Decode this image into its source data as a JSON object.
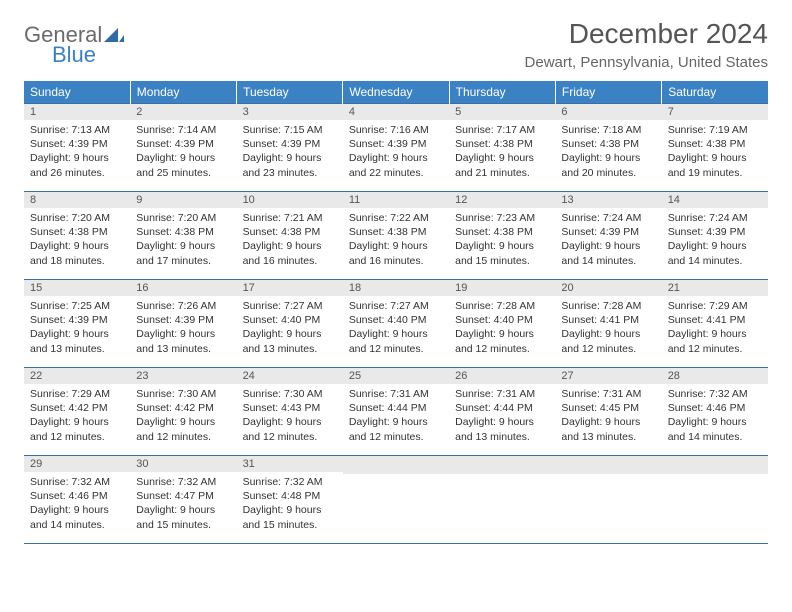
{
  "logo": {
    "general": "General",
    "blue": "Blue"
  },
  "title": "December 2024",
  "location": "Dewart, Pennsylvania, United States",
  "header_bg": "#3b82c4",
  "weekdays": [
    "Sunday",
    "Monday",
    "Tuesday",
    "Wednesday",
    "Thursday",
    "Friday",
    "Saturday"
  ],
  "weeks": [
    [
      {
        "n": "1",
        "sr": "Sunrise: 7:13 AM",
        "ss": "Sunset: 4:39 PM",
        "d1": "Daylight: 9 hours",
        "d2": "and 26 minutes."
      },
      {
        "n": "2",
        "sr": "Sunrise: 7:14 AM",
        "ss": "Sunset: 4:39 PM",
        "d1": "Daylight: 9 hours",
        "d2": "and 25 minutes."
      },
      {
        "n": "3",
        "sr": "Sunrise: 7:15 AM",
        "ss": "Sunset: 4:39 PM",
        "d1": "Daylight: 9 hours",
        "d2": "and 23 minutes."
      },
      {
        "n": "4",
        "sr": "Sunrise: 7:16 AM",
        "ss": "Sunset: 4:39 PM",
        "d1": "Daylight: 9 hours",
        "d2": "and 22 minutes."
      },
      {
        "n": "5",
        "sr": "Sunrise: 7:17 AM",
        "ss": "Sunset: 4:38 PM",
        "d1": "Daylight: 9 hours",
        "d2": "and 21 minutes."
      },
      {
        "n": "6",
        "sr": "Sunrise: 7:18 AM",
        "ss": "Sunset: 4:38 PM",
        "d1": "Daylight: 9 hours",
        "d2": "and 20 minutes."
      },
      {
        "n": "7",
        "sr": "Sunrise: 7:19 AM",
        "ss": "Sunset: 4:38 PM",
        "d1": "Daylight: 9 hours",
        "d2": "and 19 minutes."
      }
    ],
    [
      {
        "n": "8",
        "sr": "Sunrise: 7:20 AM",
        "ss": "Sunset: 4:38 PM",
        "d1": "Daylight: 9 hours",
        "d2": "and 18 minutes."
      },
      {
        "n": "9",
        "sr": "Sunrise: 7:20 AM",
        "ss": "Sunset: 4:38 PM",
        "d1": "Daylight: 9 hours",
        "d2": "and 17 minutes."
      },
      {
        "n": "10",
        "sr": "Sunrise: 7:21 AM",
        "ss": "Sunset: 4:38 PM",
        "d1": "Daylight: 9 hours",
        "d2": "and 16 minutes."
      },
      {
        "n": "11",
        "sr": "Sunrise: 7:22 AM",
        "ss": "Sunset: 4:38 PM",
        "d1": "Daylight: 9 hours",
        "d2": "and 16 minutes."
      },
      {
        "n": "12",
        "sr": "Sunrise: 7:23 AM",
        "ss": "Sunset: 4:38 PM",
        "d1": "Daylight: 9 hours",
        "d2": "and 15 minutes."
      },
      {
        "n": "13",
        "sr": "Sunrise: 7:24 AM",
        "ss": "Sunset: 4:39 PM",
        "d1": "Daylight: 9 hours",
        "d2": "and 14 minutes."
      },
      {
        "n": "14",
        "sr": "Sunrise: 7:24 AM",
        "ss": "Sunset: 4:39 PM",
        "d1": "Daylight: 9 hours",
        "d2": "and 14 minutes."
      }
    ],
    [
      {
        "n": "15",
        "sr": "Sunrise: 7:25 AM",
        "ss": "Sunset: 4:39 PM",
        "d1": "Daylight: 9 hours",
        "d2": "and 13 minutes."
      },
      {
        "n": "16",
        "sr": "Sunrise: 7:26 AM",
        "ss": "Sunset: 4:39 PM",
        "d1": "Daylight: 9 hours",
        "d2": "and 13 minutes."
      },
      {
        "n": "17",
        "sr": "Sunrise: 7:27 AM",
        "ss": "Sunset: 4:40 PM",
        "d1": "Daylight: 9 hours",
        "d2": "and 13 minutes."
      },
      {
        "n": "18",
        "sr": "Sunrise: 7:27 AM",
        "ss": "Sunset: 4:40 PM",
        "d1": "Daylight: 9 hours",
        "d2": "and 12 minutes."
      },
      {
        "n": "19",
        "sr": "Sunrise: 7:28 AM",
        "ss": "Sunset: 4:40 PM",
        "d1": "Daylight: 9 hours",
        "d2": "and 12 minutes."
      },
      {
        "n": "20",
        "sr": "Sunrise: 7:28 AM",
        "ss": "Sunset: 4:41 PM",
        "d1": "Daylight: 9 hours",
        "d2": "and 12 minutes."
      },
      {
        "n": "21",
        "sr": "Sunrise: 7:29 AM",
        "ss": "Sunset: 4:41 PM",
        "d1": "Daylight: 9 hours",
        "d2": "and 12 minutes."
      }
    ],
    [
      {
        "n": "22",
        "sr": "Sunrise: 7:29 AM",
        "ss": "Sunset: 4:42 PM",
        "d1": "Daylight: 9 hours",
        "d2": "and 12 minutes."
      },
      {
        "n": "23",
        "sr": "Sunrise: 7:30 AM",
        "ss": "Sunset: 4:42 PM",
        "d1": "Daylight: 9 hours",
        "d2": "and 12 minutes."
      },
      {
        "n": "24",
        "sr": "Sunrise: 7:30 AM",
        "ss": "Sunset: 4:43 PM",
        "d1": "Daylight: 9 hours",
        "d2": "and 12 minutes."
      },
      {
        "n": "25",
        "sr": "Sunrise: 7:31 AM",
        "ss": "Sunset: 4:44 PM",
        "d1": "Daylight: 9 hours",
        "d2": "and 12 minutes."
      },
      {
        "n": "26",
        "sr": "Sunrise: 7:31 AM",
        "ss": "Sunset: 4:44 PM",
        "d1": "Daylight: 9 hours",
        "d2": "and 13 minutes."
      },
      {
        "n": "27",
        "sr": "Sunrise: 7:31 AM",
        "ss": "Sunset: 4:45 PM",
        "d1": "Daylight: 9 hours",
        "d2": "and 13 minutes."
      },
      {
        "n": "28",
        "sr": "Sunrise: 7:32 AM",
        "ss": "Sunset: 4:46 PM",
        "d1": "Daylight: 9 hours",
        "d2": "and 14 minutes."
      }
    ],
    [
      {
        "n": "29",
        "sr": "Sunrise: 7:32 AM",
        "ss": "Sunset: 4:46 PM",
        "d1": "Daylight: 9 hours",
        "d2": "and 14 minutes."
      },
      {
        "n": "30",
        "sr": "Sunrise: 7:32 AM",
        "ss": "Sunset: 4:47 PM",
        "d1": "Daylight: 9 hours",
        "d2": "and 15 minutes."
      },
      {
        "n": "31",
        "sr": "Sunrise: 7:32 AM",
        "ss": "Sunset: 4:48 PM",
        "d1": "Daylight: 9 hours",
        "d2": "and 15 minutes."
      },
      {
        "empty": true
      },
      {
        "empty": true
      },
      {
        "empty": true
      },
      {
        "empty": true
      }
    ]
  ]
}
